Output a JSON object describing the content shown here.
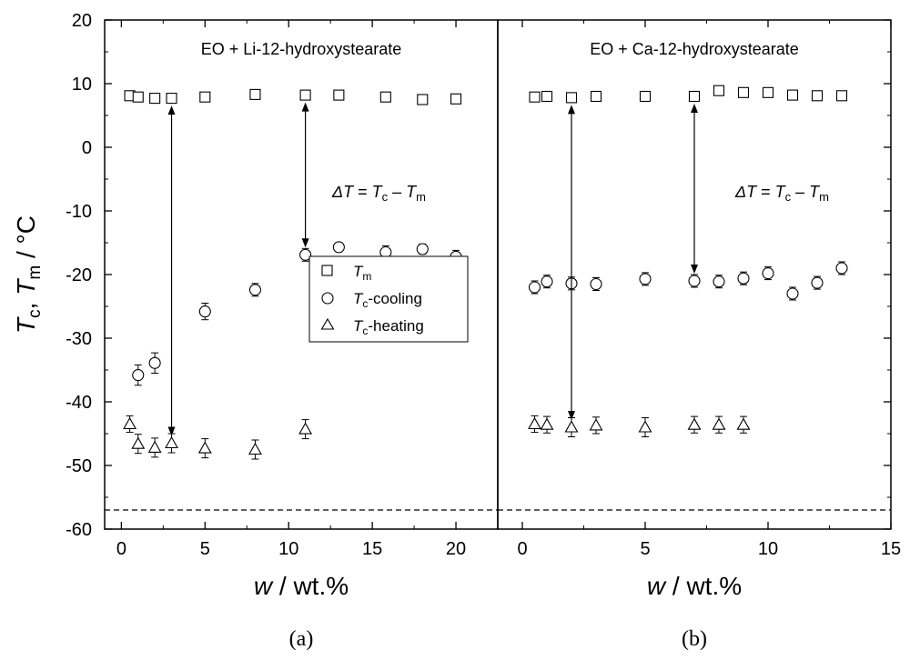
{
  "figure": {
    "y_label_main": "T",
    "y_label_sub1": "c",
    "y_label_sep": ", ",
    "y_label_main2": "T",
    "y_label_sub2": "m",
    "y_label_unit": " / °C",
    "x_label_var": "w",
    "x_label_unit": " / wt.%",
    "y_ticks": [
      "20",
      "10",
      "0",
      "-10",
      "-20",
      "-30",
      "-40",
      "-50",
      "-60"
    ],
    "legend": {
      "tm_main": "T",
      "tm_sub": "m",
      "cool_main": "T",
      "cool_sub": "c",
      "cool_suffix": "-cooling",
      "heat_main": "T",
      "heat_sub": "c",
      "heat_suffix": "-heating"
    },
    "delta_eq": {
      "delta": "ΔT",
      "eq": " = ",
      "tc": "T",
      "tc_sub": "c",
      "minus": " – ",
      "tm": "T",
      "tm_sub": "m"
    }
  },
  "chart_data": [
    {
      "type": "scatter",
      "subplot_label": "(a)",
      "title": "EO + Li-12-hydroxystearate",
      "xlim": [
        -1,
        22.5
      ],
      "ylim": [
        -60,
        20
      ],
      "x_ticks": [
        "0",
        "5",
        "10",
        "15",
        "20"
      ],
      "reference_line_y": -57,
      "series": [
        {
          "name": "Tm",
          "marker": "square",
          "x": [
            0.5,
            1,
            2,
            3,
            5,
            8,
            11,
            13,
            15.8,
            18,
            20
          ],
          "y": [
            8.1,
            7.9,
            7.7,
            7.7,
            7.9,
            8.3,
            8.2,
            8.2,
            7.9,
            7.5,
            7.6
          ],
          "err": [
            0.5,
            0.5,
            0.5,
            0.5,
            0.5,
            0.5,
            0.5,
            0.5,
            0.5,
            0.5,
            0.5
          ]
        },
        {
          "name": "Tc-cooling",
          "marker": "circle",
          "x": [
            1,
            2,
            5,
            8,
            11,
            13,
            15.8,
            18,
            20
          ],
          "y": [
            -35.8,
            -33.9,
            -25.8,
            -22.4,
            -16.9,
            -15.7,
            -16.5,
            -16,
            -17.2
          ],
          "err": [
            1.6,
            1.6,
            1.3,
            1,
            1,
            0.7,
            1,
            0.8,
            1
          ]
        },
        {
          "name": "Tc-heating",
          "marker": "triangle",
          "x": [
            0.5,
            1,
            2,
            3,
            5,
            8,
            11
          ],
          "y": [
            -43.5,
            -46.6,
            -47.2,
            -46.5,
            -47.3,
            -47.5,
            -44.3
          ],
          "err": [
            1.3,
            1.5,
            1.5,
            1.5,
            1.5,
            1.5,
            1.5
          ]
        }
      ],
      "arrows": [
        {
          "x": 3,
          "y1": 7.7,
          "y2": -46.5
        },
        {
          "x": 11,
          "y1": 8.2,
          "y2": -16.9
        }
      ]
    },
    {
      "type": "scatter",
      "subplot_label": "(b)",
      "title": "EO + Ca-12-hydroxystearate",
      "xlim": [
        -1,
        15
      ],
      "ylim": [
        -60,
        20
      ],
      "x_ticks": [
        "0",
        "5",
        "10",
        "15"
      ],
      "reference_line_y": -57,
      "series": [
        {
          "name": "Tm",
          "marker": "square",
          "x": [
            0.5,
            1,
            2,
            3,
            5,
            7,
            8,
            9,
            10,
            11,
            12,
            13
          ],
          "y": [
            7.9,
            8,
            7.8,
            8,
            8,
            8,
            8.9,
            8.6,
            8.6,
            8.2,
            8.1,
            8.1
          ],
          "err": [
            0.5,
            0.5,
            0.5,
            0.5,
            0.5,
            0.5,
            0.5,
            0.5,
            0.5,
            0.5,
            0.5,
            0.5
          ]
        },
        {
          "name": "Tc-cooling",
          "marker": "circle",
          "x": [
            0.5,
            1,
            2,
            3,
            5,
            7,
            8,
            9,
            10,
            11,
            12,
            13
          ],
          "y": [
            -22,
            -21.1,
            -21.4,
            -21.5,
            -20.7,
            -21,
            -21.1,
            -20.6,
            -19.8,
            -23,
            -21.3,
            -19
          ],
          "err": [
            1,
            1,
            1,
            1,
            1,
            1,
            1,
            1,
            1,
            1,
            1,
            1
          ]
        },
        {
          "name": "Tc-heating",
          "marker": "triangle",
          "x": [
            0.5,
            1,
            2,
            3,
            5,
            7,
            8,
            9
          ],
          "y": [
            -43.5,
            -43.6,
            -44,
            -43.7,
            -44,
            -43.6,
            -43.6,
            -43.6
          ],
          "err": [
            1.3,
            1.3,
            1.5,
            1.3,
            1.5,
            1.3,
            1.3,
            1.3
          ]
        }
      ],
      "arrows": [
        {
          "x": 2,
          "y1": 7.8,
          "y2": -44
        },
        {
          "x": 7,
          "y1": 8,
          "y2": -21
        }
      ]
    }
  ]
}
